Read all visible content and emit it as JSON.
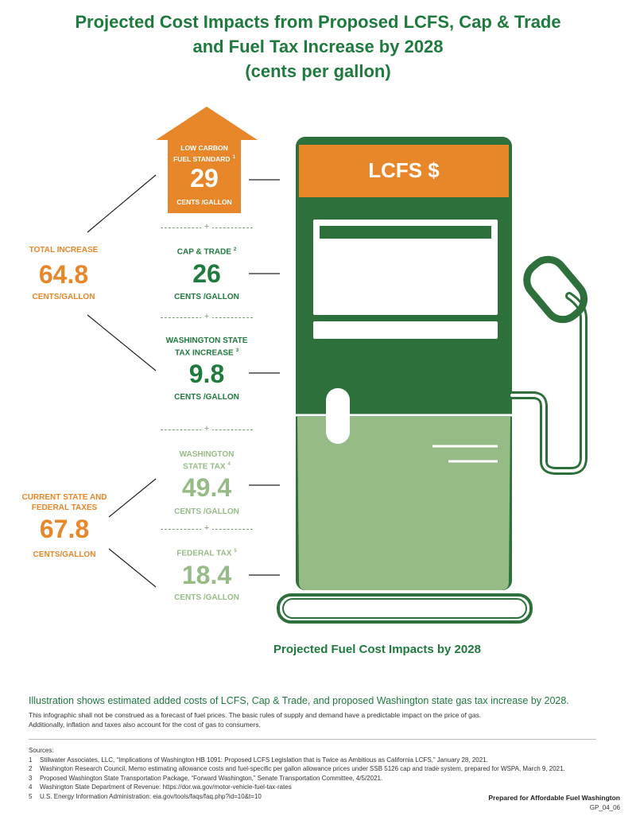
{
  "title": {
    "line1": "Projected Cost Impacts from Proposed LCFS, Cap & Trade",
    "line2": "and Fuel Tax Increase by 2028",
    "line3": "(cents per gallon)"
  },
  "pump": {
    "screen_label": "LCFS $"
  },
  "colors": {
    "dark_green": "#1f7a3e",
    "light_green": "#97bb87",
    "orange": "#e8862a",
    "pump_green": "#2e703b"
  },
  "components": {
    "lcfs": {
      "label_line1": "LOW CARBON",
      "label_line2": "FUEL STANDARD",
      "ref": "1",
      "value": "29",
      "unit": "CENTS /GALLON"
    },
    "cap_trade": {
      "label": "CAP & TRADE",
      "ref": "2",
      "value": "26",
      "unit": "CENTS /GALLON"
    },
    "wa_increase": {
      "label_line1": "WASHINGTON STATE",
      "label_line2": "TAX INCREASE",
      "ref": "3",
      "value": "9.8",
      "unit": "CENTS /GALLON"
    },
    "wa_state_tax": {
      "label_line1": "WASHINGTON",
      "label_line2": "STATE TAX",
      "ref": "4",
      "value": "49.4",
      "unit": "CENTS /GALLON"
    },
    "federal_tax": {
      "label": "FEDERAL TAX",
      "ref": "5",
      "value": "18.4",
      "unit": "CENTS /GALLON"
    }
  },
  "totals": {
    "total_increase": {
      "label": "TOTAL INCREASE",
      "value": "64.8",
      "unit": "CENTS/GALLON"
    },
    "current_taxes": {
      "label_line1": "CURRENT STATE AND",
      "label_line2": "FEDERAL TAXES",
      "value": "67.8",
      "unit": "CENTS/GALLON"
    }
  },
  "caption": "Projected Fuel Cost Impacts by 2028",
  "illustration_note": "Illustration shows estimated added costs of LCFS, Cap & Trade, and proposed Washington state gas tax increase by 2028.",
  "disclaimer_line1": "This infographic shall not be construed as a forecast of fuel prices. The basic rules of supply and demand have a predictable impact on the price of gas.",
  "disclaimer_line2": "Additionally, inflation and taxes also account for the cost of gas to consumers.",
  "sources_heading": "Sources:",
  "sources": [
    {
      "num": "1",
      "text": "Stillwater Associates, LLC, “Implications of Washington HB 1091: Proposed LCFS Legislation that is Twice as Ambitious as California LCFS,” January 28, 2021."
    },
    {
      "num": "2",
      "text": "Washington Research Council, Memo estimating allowance costs and fuel-specific per gallon allowance prices under SSB 5126 cap and trade system, prepared for WSPA, March 9, 2021."
    },
    {
      "num": "3",
      "text": "Proposed Washington State Transportation Package, “Forward Washington,” Senate Transportation Committee, 4/5/2021."
    },
    {
      "num": "4",
      "text": "Washington State Department of Revenue: https://dor.wa.gov/motor-vehicle-fuel-tax-rates"
    },
    {
      "num": "5",
      "text": "U.S. Energy Information Administration: eia.gov/tools/faqs/faq.php?id=10&t=10"
    }
  ],
  "prepared_for": "Prepared for Affordable Fuel Washington",
  "doc_code": "GP_04_06"
}
